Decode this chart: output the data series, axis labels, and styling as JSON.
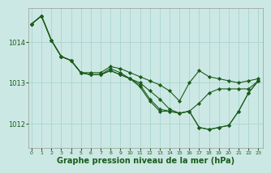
{
  "bg_color": "#cce8e4",
  "grid_color": "#aad4cf",
  "line_color": "#1a5c1a",
  "marker_color": "#1a5c1a",
  "xlabel": "Graphe pression niveau de la mer (hPa)",
  "xlabel_fontsize": 7,
  "yticks": [
    1012,
    1013,
    1014
  ],
  "xticks": [
    0,
    1,
    2,
    3,
    4,
    5,
    6,
    7,
    8,
    9,
    10,
    11,
    12,
    13,
    14,
    15,
    16,
    17,
    18,
    19,
    20,
    21,
    22,
    23
  ],
  "xlim": [
    -0.3,
    23.5
  ],
  "ylim": [
    1011.4,
    1014.85
  ],
  "series": [
    [
      1014.45,
      1014.65,
      1014.05,
      1013.65,
      1013.55,
      1013.25,
      1013.25,
      1013.25,
      1013.4,
      1013.35,
      1013.25,
      1013.15,
      1013.05,
      1012.95,
      1012.8,
      1012.55,
      1013.0,
      1013.3,
      1013.15,
      1013.1,
      1013.05,
      1013.0,
      1013.05,
      1013.1
    ],
    [
      1014.45,
      1014.65,
      1014.05,
      1013.65,
      1013.55,
      1013.25,
      1013.2,
      1013.2,
      1013.35,
      1013.25,
      1013.1,
      1013.0,
      1012.8,
      1012.6,
      1012.35,
      1012.25,
      1012.3,
      1012.5,
      1012.75,
      1012.85,
      1012.85,
      1012.85,
      1012.85,
      1013.05
    ],
    [
      1014.45,
      1014.65,
      1014.05,
      1013.65,
      1013.55,
      1013.25,
      1013.2,
      1013.2,
      1013.3,
      1013.2,
      1013.1,
      1012.95,
      1012.6,
      1012.35,
      1012.3,
      1012.25,
      1012.3,
      1011.9,
      1011.85,
      1011.9,
      1011.95,
      1012.3,
      1012.75,
      1013.05
    ],
    [
      1014.45,
      1014.65,
      1014.05,
      1013.65,
      1013.55,
      1013.25,
      1013.2,
      1013.2,
      1013.3,
      1013.2,
      1013.1,
      1012.9,
      1012.55,
      1012.3,
      1012.3,
      1012.25,
      1012.3,
      1011.9,
      1011.85,
      1011.9,
      1011.95,
      1012.3,
      1012.75,
      1013.05
    ]
  ]
}
